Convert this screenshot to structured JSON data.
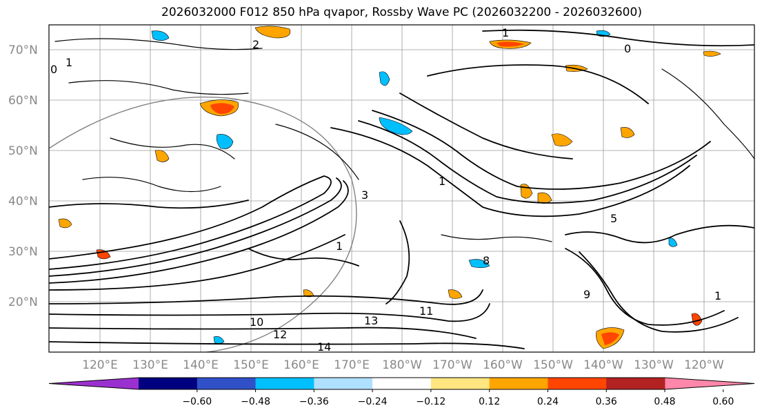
{
  "title": "2026032000 F012 850 hPa qvapor, Rossby Wave PC (2026032200 - 2026032600)",
  "lat_labels": [
    "70°N",
    "60°N",
    "50°N",
    "40°N",
    "30°N",
    "20°N"
  ],
  "lon_labels": [
    "120°E",
    "130°E",
    "140°E",
    "150°E",
    "160°E",
    "170°E",
    "180°W",
    "170°W",
    "160°W",
    "150°W",
    "140°W",
    "130°W",
    "120°W"
  ],
  "colorbar": {
    "ticks": [
      "−0.60",
      "−0.48",
      "−0.36",
      "−0.24",
      "−0.12",
      "0.12",
      "0.24",
      "0.36",
      "0.48",
      "0.60"
    ],
    "colors": [
      "#9b30d0",
      "#000080",
      "#3050c8",
      "#00bfff",
      "#b0e0ff",
      "#ffffff",
      "#ffe680",
      "#ffa500",
      "#ff4500",
      "#b22222",
      "#ff88aa"
    ]
  },
  "contour_labels": [
    "1",
    "0",
    "1",
    "0",
    "2",
    "1",
    "3",
    "1",
    "5",
    "8",
    "10",
    "11",
    "12",
    "13",
    "14",
    "9",
    "1"
  ]
}
